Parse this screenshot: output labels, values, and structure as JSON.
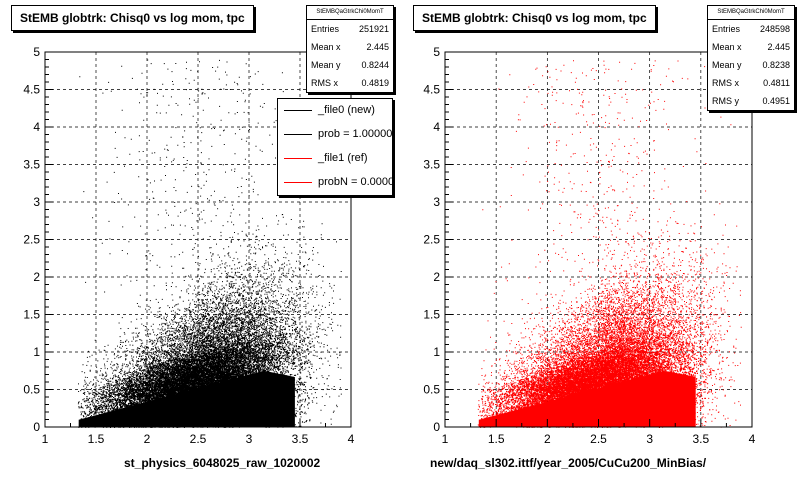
{
  "chart_data": [
    {
      "type": "scatter",
      "title": "StEMB globtrk: Chisq0 vs log mom, tpc",
      "xlabel": "st_physics_6048025_raw_1020002",
      "ylabel": "",
      "xlim": [
        1,
        4
      ],
      "ylim": [
        0,
        5
      ],
      "x_ticks": [
        "1",
        "1.5",
        "2",
        "2.5",
        "3",
        "3.5",
        "4"
      ],
      "y_ticks": [
        "0",
        "0.5",
        "1",
        "1.5",
        "2",
        "2.5",
        "3",
        "3.5",
        "4",
        "4.5",
        "5"
      ],
      "grid": true,
      "color": "#000000",
      "stats": {
        "name": "StEMBQaGtrkChi0MomT",
        "rows": [
          {
            "label": "Entries",
            "value": "251921"
          },
          {
            "label": "Mean x",
            "value": "2.445"
          },
          {
            "label": "Mean y",
            "value": "0.8244"
          },
          {
            "label": "RMS x",
            "value": "0.4819"
          }
        ]
      },
      "legend": {
        "position": "top-right",
        "entries": [
          {
            "text": "_file0 (new)",
            "color": "#000000"
          },
          {
            "text": "prob = 1.000000",
            "color": "#000000"
          },
          {
            "text": "_file1 (ref)",
            "color": "#ff0000"
          },
          {
            "text": "probN = 0.000031",
            "color": "#ff0000"
          }
        ]
      }
    },
    {
      "type": "scatter",
      "title": "StEMB globtrk: Chisq0 vs log mom, tpc",
      "xlabel": "new/daq_sl302.ittf/year_2005/CuCu200_MinBias/",
      "ylabel": "",
      "xlim": [
        1,
        4
      ],
      "ylim": [
        0,
        5
      ],
      "x_ticks": [
        "1",
        "1.5",
        "2",
        "2.5",
        "3",
        "3.5",
        "4"
      ],
      "y_ticks": [
        "0",
        "0.5",
        "1",
        "1.5",
        "2",
        "2.5",
        "3",
        "3.5",
        "4",
        "4.5",
        "5"
      ],
      "grid": true,
      "color": "#ff0000",
      "stats": {
        "name": "StEMBQaGtrkChi0MomT",
        "rows": [
          {
            "label": "Entries",
            "value": "248598"
          },
          {
            "label": "Mean x",
            "value": "2.445"
          },
          {
            "label": "Mean y",
            "value": "0.8238"
          },
          {
            "label": "RMS x",
            "value": "0.4811"
          },
          {
            "label": "RMS y",
            "value": "0.4951"
          }
        ]
      }
    }
  ]
}
